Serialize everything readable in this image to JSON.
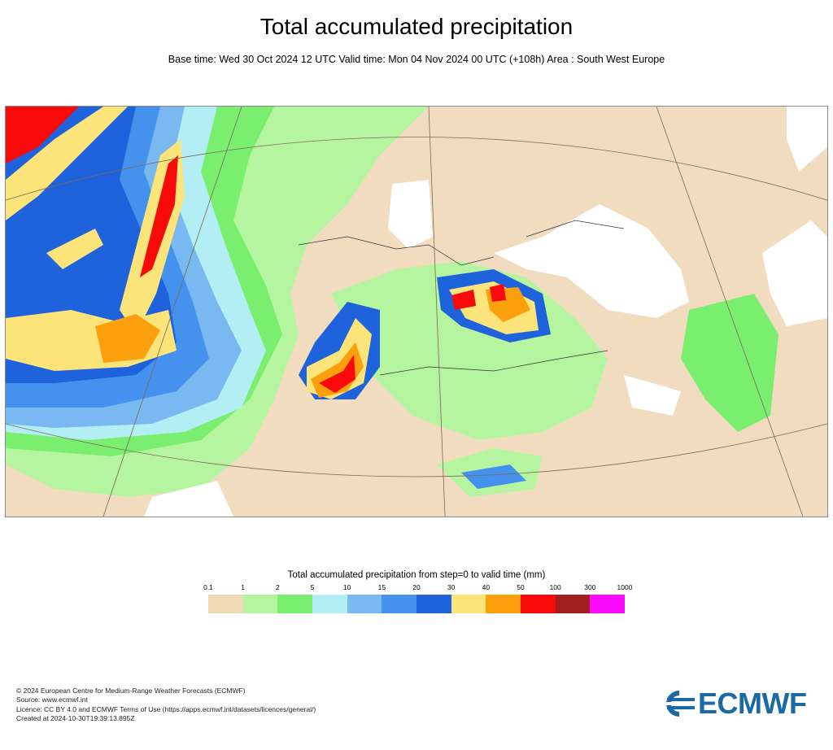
{
  "header": {
    "title": "Total accumulated precipitation",
    "subtitle": "Base time: Wed 30 Oct 2024 12 UTC Valid time: Mon 04 Nov 2024 00 UTC (+108h) Area : South West Europe"
  },
  "legend": {
    "title": "Total accumulated precipitation from step=0 to valid time (mm)",
    "ticks": [
      "0.1",
      "1",
      "2",
      "5",
      "10",
      "15",
      "20",
      "30",
      "40",
      "50",
      "100",
      "300",
      "1000"
    ],
    "colors": [
      "#f0d9b5",
      "#b5f5a0",
      "#7aee6e",
      "#b3eef5",
      "#7ab8f2",
      "#4592ee",
      "#1f63dc",
      "#fce47a",
      "#fb9f0d",
      "#f90a0a",
      "#a11f1f",
      "#fc0afc"
    ]
  },
  "footer": {
    "line1": "© 2024 European Centre for Medium-Range Weather Forecasts (ECMWF)",
    "line2": "Source: www.ecmwf.int",
    "line3": "Licence: CC BY 4.0 and ECMWF Terms of Use (https://apps.ecmwf.int/datasets/licences/general/)",
    "line4": "Created at 2024-10-30T19:39:13.895Z"
  },
  "logo": {
    "text": "ECMWF",
    "color": "#1a6aa6"
  }
}
